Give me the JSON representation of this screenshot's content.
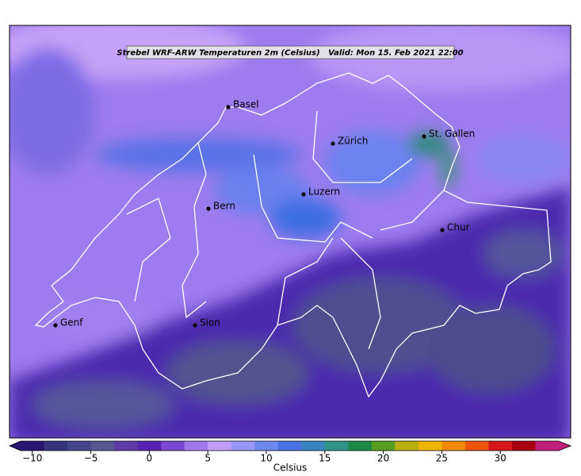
{
  "header": {
    "title": "Strebel WRF-ARW Temperaturen 2m (Celsius)   Valid: Mon 15. Feb 2021 22:00"
  },
  "cities": [
    {
      "name": "Basel"
    },
    {
      "name": "Zürich"
    },
    {
      "name": "St. Gallen"
    },
    {
      "name": "Luzern"
    },
    {
      "name": "Bern"
    },
    {
      "name": "Chur"
    },
    {
      "name": "Genf"
    },
    {
      "name": "Sion"
    }
  ],
  "colorbar": {
    "label": "Celsius",
    "lim": [
      -11,
      35
    ],
    "ticks": [
      {
        "value": -10,
        "label": "−10"
      },
      {
        "value": -5,
        "label": "−5"
      },
      0,
      5,
      10,
      15,
      20,
      25,
      30
    ],
    "colors": [
      "#2a1670",
      "#36347e",
      "#44448a",
      "#565694",
      "#5e3ea6",
      "#5a22b0",
      "#7a48d0",
      "#a078ec",
      "#c09cf6",
      "#9a98f6",
      "#6e88f0",
      "#4a72e2",
      "#3a84c0",
      "#2e9488",
      "#1c8a46",
      "#5a9e20",
      "#b8b010",
      "#f0b400",
      "#f08a00",
      "#ee5410",
      "#d81818",
      "#a80010",
      "#c0207a"
    ]
  }
}
